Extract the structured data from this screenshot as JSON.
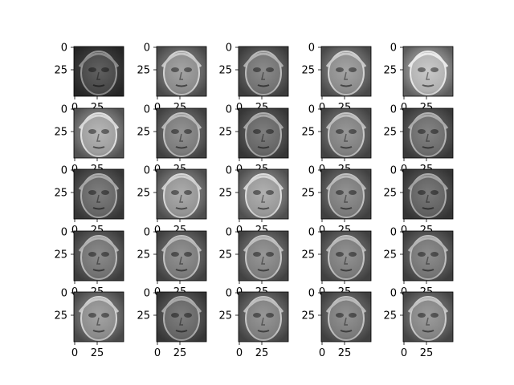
{
  "figure": {
    "background": "#ffffff",
    "rows": 5,
    "cols": 5,
    "colormap": "gray",
    "axes": {
      "y_tick_labels": [
        "0",
        "25"
      ],
      "x_tick_labels": [
        "0",
        "25"
      ]
    },
    "subplot_brightness": [
      [
        0.28,
        0.55,
        0.45,
        0.55,
        0.7
      ],
      [
        0.62,
        0.48,
        0.4,
        0.5,
        0.42
      ],
      [
        0.4,
        0.58,
        0.6,
        0.48,
        0.38
      ],
      [
        0.45,
        0.48,
        0.5,
        0.48,
        0.46
      ],
      [
        0.55,
        0.4,
        0.5,
        0.48,
        0.52
      ]
    ]
  }
}
